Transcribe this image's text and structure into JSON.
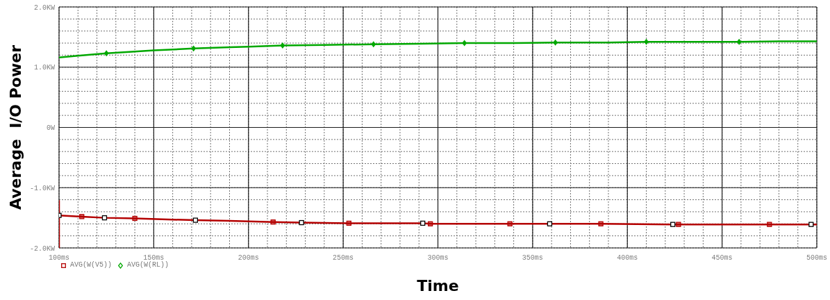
{
  "chart_data": {
    "type": "line",
    "xlabel": "Time",
    "ylabel": "Average  I/O Power",
    "xlim": [
      100,
      500
    ],
    "xticks": [
      {
        "value": 100,
        "label": "100ms"
      },
      {
        "value": 110,
        "label": null
      },
      {
        "value": 120,
        "label": null
      },
      {
        "value": 130,
        "label": null
      },
      {
        "value": 140,
        "label": null
      },
      {
        "value": 150,
        "label": "150ms"
      },
      {
        "value": 160,
        "label": null
      },
      {
        "value": 170,
        "label": null
      },
      {
        "value": 180,
        "label": null
      },
      {
        "value": 190,
        "label": null
      },
      {
        "value": 200,
        "label": "200ms"
      },
      {
        "value": 210,
        "label": null
      },
      {
        "value": 220,
        "label": null
      },
      {
        "value": 230,
        "label": null
      },
      {
        "value": 240,
        "label": null
      },
      {
        "value": 250,
        "label": "250ms"
      },
      {
        "value": 260,
        "label": null
      },
      {
        "value": 270,
        "label": null
      },
      {
        "value": 280,
        "label": null
      },
      {
        "value": 290,
        "label": null
      },
      {
        "value": 300,
        "label": "300ms"
      },
      {
        "value": 310,
        "label": null
      },
      {
        "value": 320,
        "label": null
      },
      {
        "value": 330,
        "label": null
      },
      {
        "value": 340,
        "label": null
      },
      {
        "value": 350,
        "label": "350ms"
      },
      {
        "value": 360,
        "label": null
      },
      {
        "value": 370,
        "label": null
      },
      {
        "value": 380,
        "label": null
      },
      {
        "value": 390,
        "label": null
      },
      {
        "value": 400,
        "label": "400ms"
      },
      {
        "value": 410,
        "label": null
      },
      {
        "value": 420,
        "label": null
      },
      {
        "value": 430,
        "label": null
      },
      {
        "value": 440,
        "label": null
      },
      {
        "value": 450,
        "label": "450ms"
      },
      {
        "value": 460,
        "label": null
      },
      {
        "value": 470,
        "label": null
      },
      {
        "value": 480,
        "label": null
      },
      {
        "value": 490,
        "label": null
      },
      {
        "value": 500,
        "label": "500ms"
      }
    ],
    "ylim": [
      -2,
      2
    ],
    "yticks": [
      {
        "value": -2,
        "label": "-2.0KW"
      },
      {
        "value": -1.8,
        "label": null
      },
      {
        "value": -1.6,
        "label": null
      },
      {
        "value": -1.4,
        "label": null
      },
      {
        "value": -1.2,
        "label": null
      },
      {
        "value": -1,
        "label": "-1.0KW"
      },
      {
        "value": -0.8,
        "label": null
      },
      {
        "value": -0.6,
        "label": null
      },
      {
        "value": -0.4,
        "label": null
      },
      {
        "value": -0.2,
        "label": null
      },
      {
        "value": 0,
        "label": "0W"
      },
      {
        "value": 0.2,
        "label": null
      },
      {
        "value": 0.4,
        "label": null
      },
      {
        "value": 0.6,
        "label": null
      },
      {
        "value": 0.8,
        "label": null
      },
      {
        "value": 1,
        "label": "1.0KW"
      },
      {
        "value": 1.2,
        "label": null
      },
      {
        "value": 1.4,
        "label": null
      },
      {
        "value": 1.6,
        "label": null
      },
      {
        "value": 1.8,
        "label": null
      },
      {
        "value": 2,
        "label": "2.0KW"
      }
    ],
    "grid": true,
    "legend": "bottom left",
    "series": [
      {
        "name": "AVG(W(V5))",
        "color": "#b40000",
        "marker": "none",
        "x": [
          100,
          100,
          100,
          112,
          124,
          140,
          160,
          172,
          190,
          213,
          228,
          253,
          292,
          296,
          338,
          359,
          386,
          424,
          427,
          475,
          497,
          500
        ],
        "values": [
          -2.0,
          -1.22,
          -1.46,
          -1.48,
          -1.5,
          -1.51,
          -1.53,
          -1.54,
          -1.55,
          -1.57,
          -1.58,
          -1.59,
          -1.59,
          -1.6,
          -1.6,
          -1.6,
          -1.6,
          -1.61,
          -1.61,
          -1.61,
          -1.61,
          -1.61
        ]
      },
      {
        "type": "scatter",
        "color": "#b40000",
        "marker": "square",
        "x": [
          112,
          140,
          213,
          253,
          296,
          338,
          386,
          427,
          475
        ],
        "values": [
          -1.48,
          -1.51,
          -1.57,
          -1.59,
          -1.6,
          -1.6,
          -1.6,
          -1.61,
          -1.61
        ]
      },
      {
        "type": "scatter",
        "color": "#ffffff",
        "marker": "square",
        "x": [
          100,
          124,
          172,
          228,
          292,
          359,
          424,
          497
        ],
        "values": [
          -1.46,
          -1.5,
          -1.54,
          -1.58,
          -1.59,
          -1.6,
          -1.61,
          -1.61
        ]
      },
      {
        "name": "AVG(W(RL))",
        "color": "#00a800",
        "marker": "none",
        "x": [
          100,
          110,
          125,
          140,
          150,
          171,
          190,
          200,
          218,
          240,
          266,
          290,
          314,
          340,
          362,
          390,
          410,
          440,
          459,
          480,
          500
        ],
        "values": [
          1.16,
          1.19,
          1.23,
          1.26,
          1.28,
          1.31,
          1.33,
          1.34,
          1.36,
          1.37,
          1.38,
          1.39,
          1.4,
          1.4,
          1.41,
          1.41,
          1.42,
          1.42,
          1.42,
          1.43,
          1.43
        ]
      },
      {
        "type": "scatter",
        "color": "#00a800",
        "marker": "diamond",
        "x": [
          125,
          171,
          218,
          266,
          314,
          362,
          410,
          459
        ],
        "values": [
          1.23,
          1.31,
          1.36,
          1.38,
          1.4,
          1.41,
          1.42,
          1.42
        ]
      }
    ]
  }
}
